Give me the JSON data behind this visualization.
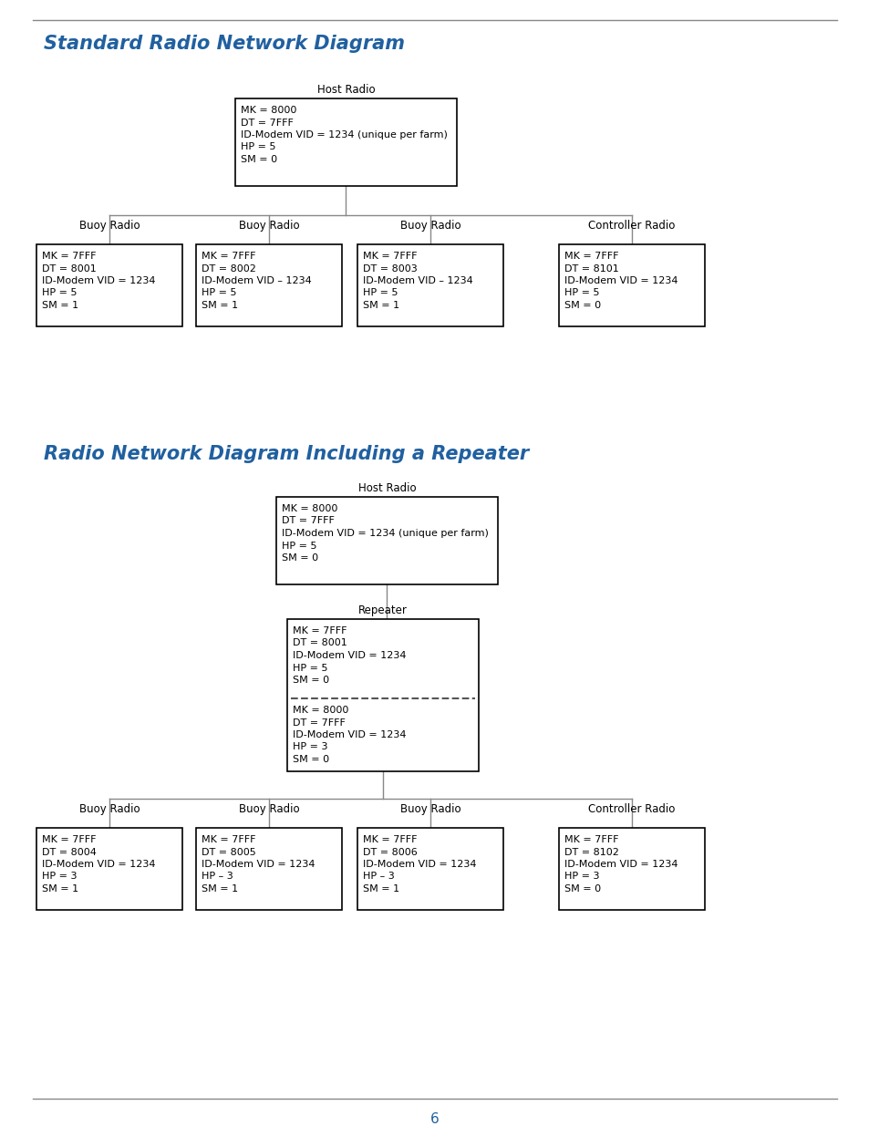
{
  "page_bg": "#ffffff",
  "title1": "Standard Radio Network Diagram",
  "title2": "Radio Network Diagram Including a Repeater",
  "title_color": "#2060A0",
  "title_fontsize": 15,
  "box_edge_color": "#000000",
  "box_bg": "#ffffff",
  "text_color": "#000000",
  "label_color": "#000000",
  "footer_text": "6",
  "footer_color": "#2060A0",
  "d1_host_label": "Host Radio",
  "d1_host_text": [
    "MK = 8000",
    "DT = 7FFF",
    "ID-Modem VID = 1234 (unique per farm)",
    "HP = 5",
    "SM = 0"
  ],
  "d1_child_labels": [
    "Buoy Radio",
    "Buoy Radio",
    "Buoy Radio",
    "Controller Radio"
  ],
  "d1_child_texts": [
    [
      "MK = 7FFF",
      "DT = 8001",
      "ID-Modem VID = 1234",
      "HP = 5",
      "SM = 1"
    ],
    [
      "MK = 7FFF",
      "DT = 8002",
      "ID-Modem VID – 1234",
      "HP = 5",
      "SM = 1"
    ],
    [
      "MK = 7FFF",
      "DT = 8003",
      "ID-Modem VID – 1234",
      "HP = 5",
      "SM = 1"
    ],
    [
      "MK = 7FFF",
      "DT = 8101",
      "ID-Modem VID = 1234",
      "HP = 5",
      "SM = 0"
    ]
  ],
  "d2_host_label": "Host Radio",
  "d2_host_text": [
    "MK = 8000",
    "DT = 7FFF",
    "ID-Modem VID = 1234 (unique per farm)",
    "HP = 5",
    "SM = 0"
  ],
  "d2_rep_label": "Repeater",
  "d2_rep_top_text": [
    "MK = 7FFF",
    "DT = 8001",
    "ID-Modem VID = 1234",
    "HP = 5",
    "SM = 0"
  ],
  "d2_rep_bot_text": [
    "MK = 8000",
    "DT = 7FFF",
    "ID-Modem VID = 1234",
    "HP = 3",
    "SM = 0"
  ],
  "d2_child_labels": [
    "Buoy Radio",
    "Buoy Radio",
    "Buoy Radio",
    "Controller Radio"
  ],
  "d2_child_texts": [
    [
      "MK = 7FFF",
      "DT = 8004",
      "ID-Modem VID = 1234",
      "HP = 3",
      "SM = 1"
    ],
    [
      "MK = 7FFF",
      "DT = 8005",
      "ID-Modem VID = 1234",
      "HP – 3",
      "SM = 1"
    ],
    [
      "MK = 7FFF",
      "DT = 8006",
      "ID-Modem VID = 1234",
      "HP – 3",
      "SM = 1"
    ],
    [
      "MK = 7FFF",
      "DT = 8102",
      "ID-Modem VID = 1234",
      "HP = 3",
      "SM = 0"
    ]
  ]
}
